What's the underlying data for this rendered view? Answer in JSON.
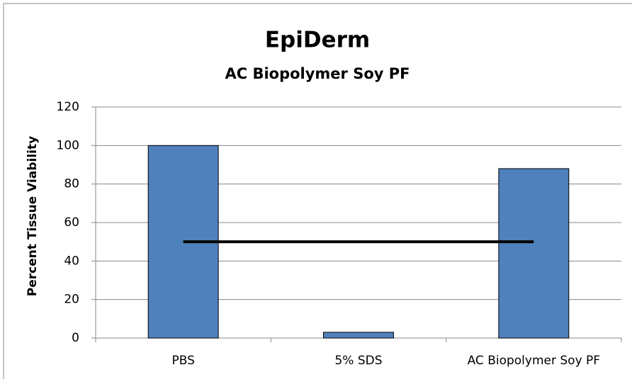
{
  "chart_data": {
    "type": "bar",
    "title": "EpiDerm",
    "subtitle": "AC Biopolymer Soy PF",
    "y_label": "Percent Tissue Viability",
    "categories": [
      "PBS",
      "5% SDS",
      "AC Biopolymer Soy PF"
    ],
    "series": [
      {
        "type": "bar",
        "color": "#4f81bd",
        "values": [
          100,
          3,
          88
        ]
      },
      {
        "type": "line",
        "color": "#000000",
        "values": [
          50,
          50,
          50
        ]
      }
    ],
    "ylim": [
      0,
      120
    ],
    "yticks": [
      0,
      20,
      40,
      60,
      80,
      100,
      120
    ],
    "grid": true
  }
}
